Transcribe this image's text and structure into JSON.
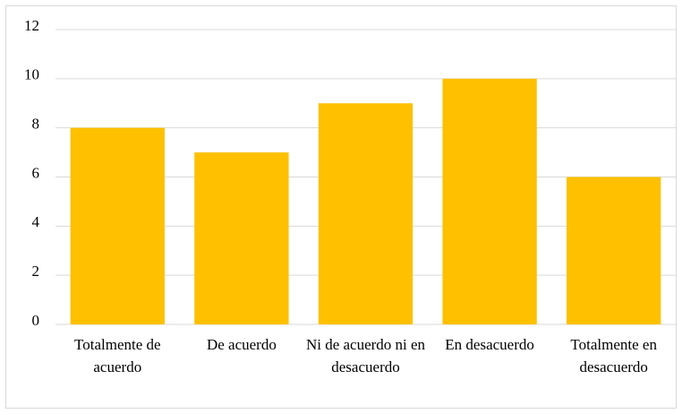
{
  "chart_data": {
    "type": "bar",
    "categories": [
      "Totalmente de acuerdo",
      "De acuerdo",
      "Ni de acuerdo ni en desacuerdo",
      "En desacuerdo",
      "Totalmente en desacuerdo"
    ],
    "values": [
      8,
      7,
      9,
      10,
      6
    ],
    "color": "#ffc000",
    "ylim": [
      0,
      12
    ],
    "yticks": [
      0,
      2,
      4,
      6,
      8,
      10,
      12
    ],
    "grid": true
  }
}
